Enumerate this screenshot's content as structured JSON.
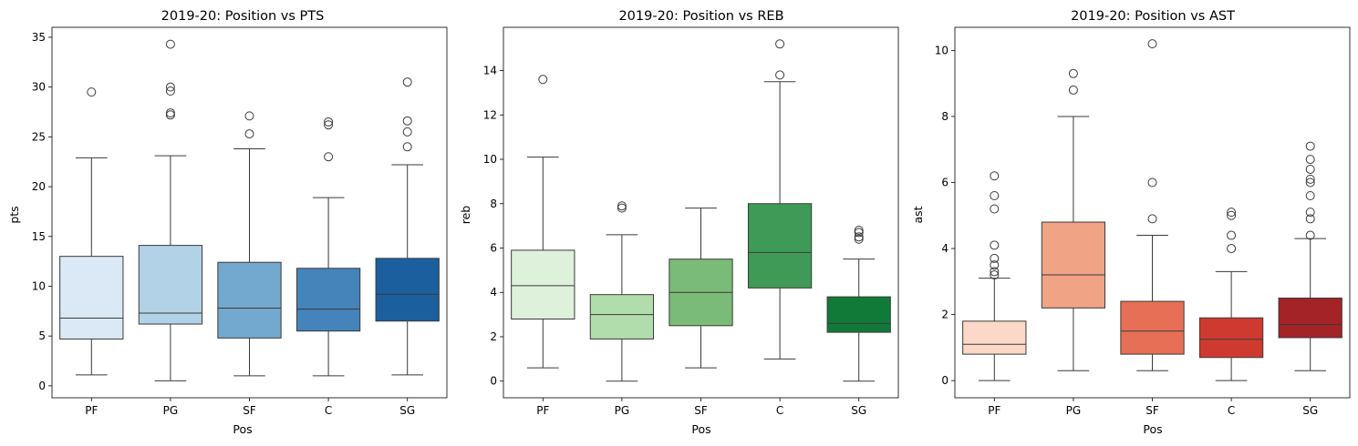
{
  "chart_data": [
    {
      "type": "box",
      "title": "2019-20: Position vs PTS",
      "xlabel": "Pos",
      "ylabel": "pts",
      "categories": [
        "PF",
        "PG",
        "SF",
        "C",
        "SG"
      ],
      "ylim": [
        -1.2,
        36.0
      ],
      "yticks": [
        0,
        5,
        10,
        15,
        20,
        25,
        30,
        35
      ],
      "colors": [
        "#dbe9f6",
        "#b1d2e7",
        "#73a9cf",
        "#4484ba",
        "#1c5f9f"
      ],
      "boxes": [
        {
          "min": 1.1,
          "q1": 4.7,
          "median": 6.8,
          "q3": 13.0,
          "max": 22.9,
          "outliers": [
            29.5
          ]
        },
        {
          "min": 0.5,
          "q1": 6.2,
          "median": 7.3,
          "q3": 14.1,
          "max": 23.1,
          "outliers": [
            27.2,
            27.4,
            29.6,
            30.0,
            34.3
          ]
        },
        {
          "min": 1.0,
          "q1": 4.8,
          "median": 7.8,
          "q3": 12.4,
          "max": 23.8,
          "outliers": [
            25.3,
            27.1
          ]
        },
        {
          "min": 1.0,
          "q1": 5.5,
          "median": 7.7,
          "q3": 11.8,
          "max": 18.9,
          "outliers": [
            23.0,
            26.2,
            26.5
          ]
        },
        {
          "min": 1.1,
          "q1": 6.5,
          "median": 9.2,
          "q3": 12.8,
          "max": 22.2,
          "outliers": [
            24.0,
            25.5,
            26.6,
            30.5
          ]
        }
      ]
    },
    {
      "type": "box",
      "title": "2019-20: Position vs REB",
      "xlabel": "Pos",
      "ylabel": "reb",
      "categories": [
        "PF",
        "PG",
        "SF",
        "C",
        "SG"
      ],
      "ylim": [
        -0.75,
        15.95
      ],
      "yticks": [
        0,
        2,
        4,
        6,
        8,
        10,
        12,
        14
      ],
      "colors": [
        "#def1da",
        "#b1dcab",
        "#7abb78",
        "#3f9a57",
        "#117a38"
      ],
      "boxes": [
        {
          "min": 0.6,
          "q1": 2.8,
          "median": 4.3,
          "q3": 5.9,
          "max": 10.1,
          "outliers": [
            13.6
          ]
        },
        {
          "min": 0.0,
          "q1": 1.9,
          "median": 3.0,
          "q3": 3.9,
          "max": 6.6,
          "outliers": [
            7.8,
            7.9
          ]
        },
        {
          "min": 0.6,
          "q1": 2.5,
          "median": 4.0,
          "q3": 5.5,
          "max": 7.8,
          "outliers": []
        },
        {
          "min": 1.0,
          "q1": 4.2,
          "median": 5.8,
          "q3": 8.0,
          "max": 13.5,
          "outliers": [
            13.8,
            15.2
          ]
        },
        {
          "min": 0.0,
          "q1": 2.2,
          "median": 2.6,
          "q3": 3.8,
          "max": 5.5,
          "outliers": [
            6.4,
            6.5,
            6.7,
            6.8
          ]
        }
      ]
    },
    {
      "type": "box",
      "title": "2019-20: Position vs AST",
      "xlabel": "Pos",
      "ylabel": "ast",
      "categories": [
        "PF",
        "PG",
        "SF",
        "C",
        "SG"
      ],
      "ylim": [
        -0.52,
        10.7
      ],
      "yticks": [
        0,
        2,
        4,
        6,
        8,
        10
      ],
      "colors": [
        "#fbd8c7",
        "#f1a386",
        "#e66f55",
        "#ce3a2f",
        "#a42326"
      ],
      "boxes": [
        {
          "min": 0.0,
          "q1": 0.8,
          "median": 1.1,
          "q3": 1.8,
          "max": 3.1,
          "outliers": [
            3.2,
            3.3,
            3.5,
            3.7,
            4.1,
            5.2,
            5.6,
            6.2
          ]
        },
        {
          "min": 0.3,
          "q1": 2.2,
          "median": 3.2,
          "q3": 4.8,
          "max": 8.0,
          "outliers": [
            8.8,
            9.3
          ]
        },
        {
          "min": 0.3,
          "q1": 0.8,
          "median": 1.5,
          "q3": 2.4,
          "max": 4.4,
          "outliers": [
            4.9,
            6.0,
            10.2
          ]
        },
        {
          "min": 0.0,
          "q1": 0.7,
          "median": 1.25,
          "q3": 1.9,
          "max": 3.3,
          "outliers": [
            4.0,
            4.4,
            5.0,
            5.1
          ]
        },
        {
          "min": 0.3,
          "q1": 1.3,
          "median": 1.7,
          "q3": 2.5,
          "max": 4.3,
          "outliers": [
            4.4,
            4.9,
            5.1,
            5.6,
            6.0,
            6.1,
            6.4,
            6.7,
            7.1
          ]
        }
      ]
    }
  ]
}
